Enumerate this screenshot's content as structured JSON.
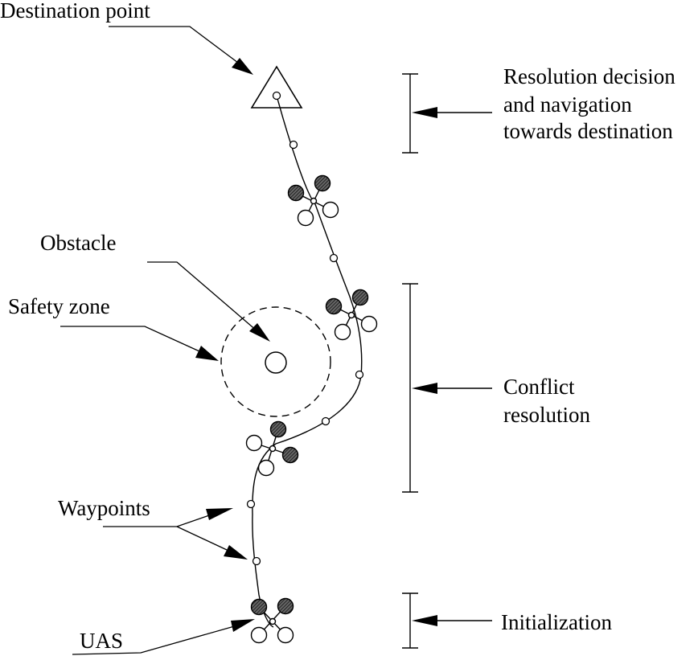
{
  "labels": {
    "destination_point": "Destination point",
    "obstacle": "Obstacle",
    "safety_zone": "Safety zone",
    "waypoints": "Waypoints",
    "uas": "UAS"
  },
  "phases": {
    "resolution_line1": "Resolution decision",
    "resolution_line2": "and navigation",
    "resolution_line3": "towards destination",
    "conflict_line1": "Conflict",
    "conflict_line2": "resolution",
    "initialization": "Initialization"
  },
  "colors": {
    "stroke": "#000000",
    "rotor_fill": "#444444",
    "background": "#ffffff"
  }
}
